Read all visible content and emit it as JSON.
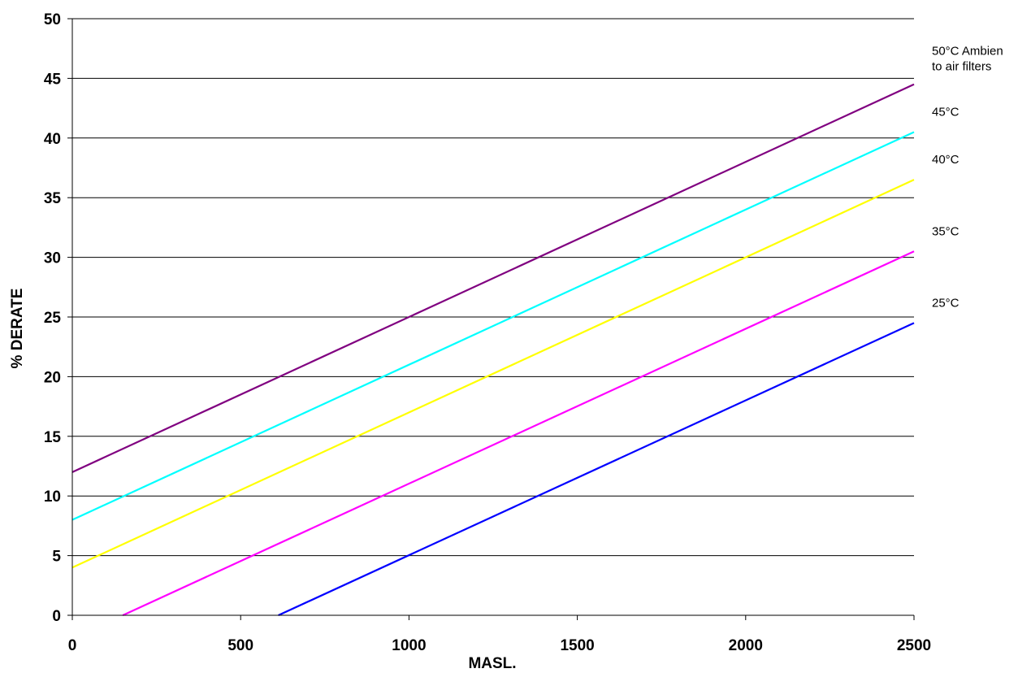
{
  "chart_data": {
    "type": "line",
    "title": "",
    "xlabel": "MASL.",
    "ylabel": "% DERATE",
    "xlim": [
      0,
      2500
    ],
    "ylim": [
      0,
      50
    ],
    "x_ticks": [
      "0",
      "500",
      "1000",
      "1500",
      "2000",
      "2500"
    ],
    "y_ticks": [
      "0",
      "5",
      "10",
      "15",
      "20",
      "25",
      "30",
      "35",
      "40",
      "45",
      "50"
    ],
    "grid": "horizontal",
    "legend": "right",
    "series": [
      {
        "name": "50°C Ambient to air filters",
        "label_lines": [
          "50°C Ambien",
          "to air filters"
        ],
        "color": "#800080",
        "points": [
          [
            0,
            12
          ],
          [
            2500,
            44.5
          ]
        ]
      },
      {
        "name": "45°C",
        "label_lines": [
          "45°C"
        ],
        "color": "#00ffff",
        "points": [
          [
            0,
            8
          ],
          [
            2500,
            40.5
          ]
        ]
      },
      {
        "name": "40°C",
        "label_lines": [
          "40°C"
        ],
        "color": "#ffff00",
        "points": [
          [
            0,
            4
          ],
          [
            2500,
            36.5
          ]
        ]
      },
      {
        "name": "35°C",
        "label_lines": [
          "35°C"
        ],
        "color": "#ff00ff",
        "points": [
          [
            150,
            0
          ],
          [
            2500,
            30.5
          ]
        ]
      },
      {
        "name": "25°C",
        "label_lines": [
          "25°C"
        ],
        "color": "#0000ff",
        "points": [
          [
            612,
            0
          ],
          [
            2500,
            24.5
          ]
        ]
      }
    ]
  }
}
